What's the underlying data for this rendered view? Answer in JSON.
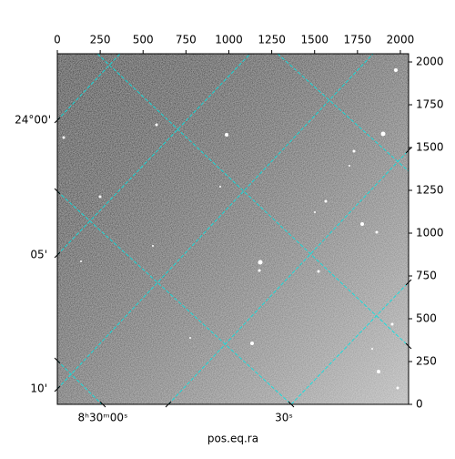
{
  "chart_data": {
    "type": "image",
    "xlabel": "pos.eq.ra",
    "xlim": [
      0,
      2048
    ],
    "ylim": [
      0,
      2048
    ],
    "xticks": [
      0,
      250,
      500,
      750,
      1000,
      1250,
      1500,
      1750,
      2000
    ],
    "yticks": [
      0,
      250,
      500,
      750,
      1000,
      1250,
      1500,
      1750,
      2000
    ],
    "dec_labels": [
      "24°00'",
      "05'",
      "10'"
    ],
    "ra_labels": [
      "8ʰ30ᵐ00ˢ",
      "30ˢ"
    ]
  }
}
